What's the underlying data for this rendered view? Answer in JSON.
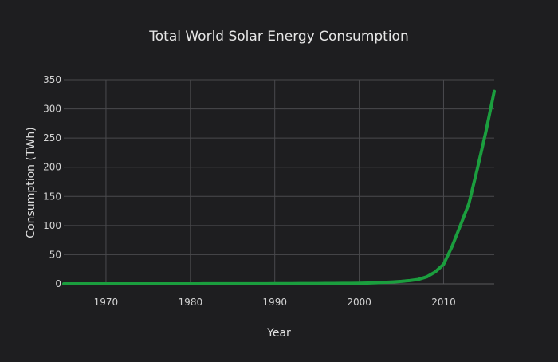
{
  "chart_data": {
    "type": "line",
    "title": "Total World Solar Energy Consumption",
    "xlabel": "Year",
    "ylabel": "Consumption (TWh)",
    "xlim": [
      1965,
      2016
    ],
    "ylim": [
      0,
      350
    ],
    "grid": true,
    "x_ticks": [
      1970,
      1980,
      1990,
      2000,
      2010
    ],
    "y_ticks": [
      0,
      50,
      100,
      150,
      200,
      250,
      300,
      350
    ],
    "series": [
      {
        "x": [
          1965,
          1966,
          1967,
          1968,
          1969,
          1970,
          1971,
          1972,
          1973,
          1974,
          1975,
          1976,
          1977,
          1978,
          1979,
          1980,
          1981,
          1982,
          1983,
          1984,
          1985,
          1986,
          1987,
          1988,
          1989,
          1990,
          1991,
          1992,
          1993,
          1994,
          1995,
          1996,
          1997,
          1998,
          1999,
          2000,
          2001,
          2002,
          2003,
          2004,
          2005,
          2006,
          2007,
          2008,
          2009,
          2010,
          2011,
          2012,
          2013,
          2014,
          2015,
          2016
        ],
        "y": [
          0.02,
          0.02,
          0.02,
          0.02,
          0.02,
          0.03,
          0.03,
          0.03,
          0.03,
          0.04,
          0.04,
          0.05,
          0.05,
          0.06,
          0.06,
          0.07,
          0.08,
          0.09,
          0.1,
          0.11,
          0.12,
          0.13,
          0.15,
          0.17,
          0.2,
          0.3,
          0.35,
          0.4,
          0.45,
          0.5,
          0.55,
          0.6,
          0.7,
          0.8,
          0.9,
          1.1,
          1.4,
          1.9,
          2.5,
          3.3,
          4.3,
          5.7,
          7.6,
          12.0,
          20.4,
          33.5,
          64.0,
          100.4,
          137.6,
          197.4,
          260.0,
          330.0
        ],
        "color": "#1b9e3e"
      }
    ]
  }
}
